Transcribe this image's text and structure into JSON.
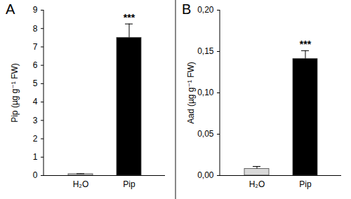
{
  "chart_data": [
    {
      "type": "bar",
      "title": "A",
      "ylabel": "Pip (µg g⁻¹ FW)",
      "categories": [
        "H₂O",
        "Pip"
      ],
      "values": [
        0.08,
        7.5
      ],
      "errors": [
        0.02,
        0.75
      ],
      "colors": [
        "#d9d9d9",
        "#000000"
      ],
      "ylim": [
        0,
        9
      ],
      "yticks": [
        0,
        1,
        2,
        3,
        4,
        5,
        6,
        7,
        8,
        9
      ],
      "annotations": [
        {
          "x": "Pip",
          "text": "***"
        }
      ]
    },
    {
      "type": "bar",
      "title": "B",
      "ylabel": "Aad (µg g⁻¹ FW)",
      "categories": [
        "H₂O",
        "Pip"
      ],
      "values": [
        0.008,
        0.141
      ],
      "errors": [
        0.003,
        0.01
      ],
      "colors": [
        "#d9d9d9",
        "#000000"
      ],
      "ylim": [
        0,
        0.2
      ],
      "yticks": [
        {
          "value": 0,
          "label": "0,00"
        },
        {
          "value": 0.05,
          "label": "0,05"
        },
        {
          "value": 0.1,
          "label": "0,10"
        },
        {
          "value": 0.15,
          "label": "0,15"
        },
        {
          "value": 0.2,
          "label": "0,20"
        }
      ],
      "annotations": [
        {
          "x": "Pip",
          "text": "***"
        }
      ]
    }
  ]
}
